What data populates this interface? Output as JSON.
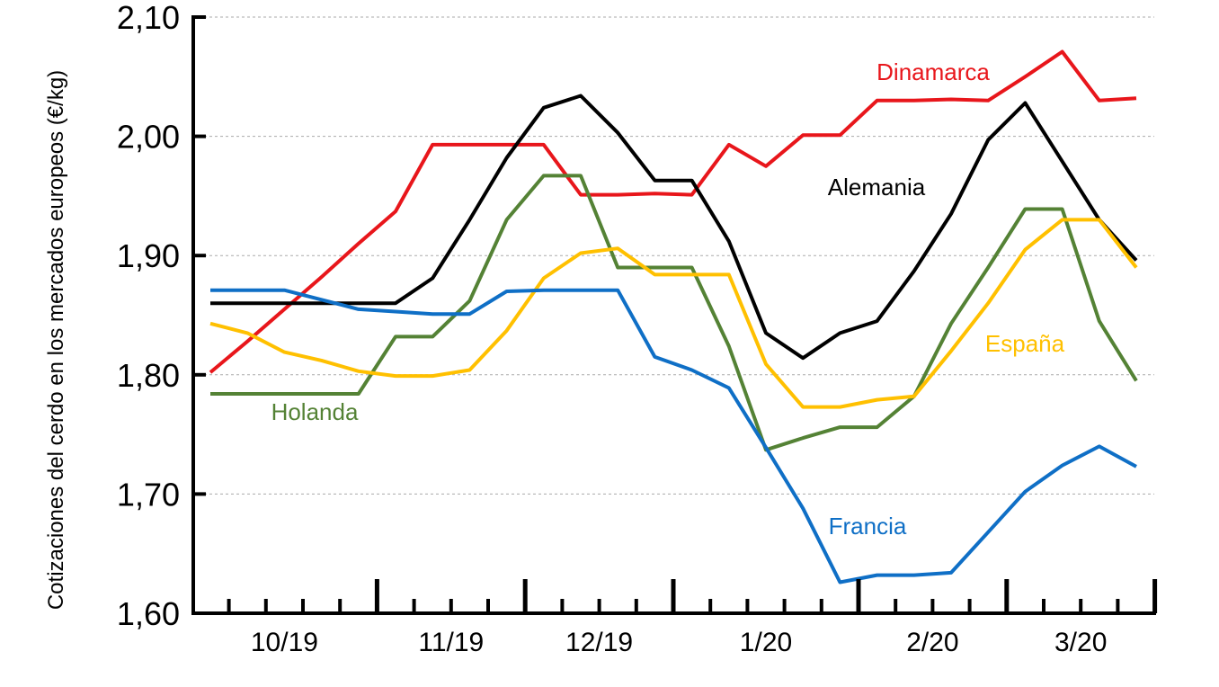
{
  "chart_data": {
    "type": "line",
    "title": "",
    "xlabel": "",
    "ylabel": "Cotizaciones del cerdo en los mercados europeos (€/kg)",
    "ylim": [
      1.6,
      2.1
    ],
    "yticks": [
      "1,60",
      "1,70",
      "1,80",
      "1,90",
      "2,00",
      "2,10"
    ],
    "grid": "horizontal dashed",
    "legend": "inline labels",
    "x_month_labels": [
      "10/19",
      "11/19",
      "12/19",
      "1/20",
      "2/20",
      "3/20"
    ],
    "series": [
      {
        "name": "Dinamarca",
        "color": "#e8161b",
        "values": [
          1.802,
          1.828,
          1.855,
          1.882,
          1.91,
          1.937,
          1.993,
          1.993,
          1.993,
          1.993,
          1.951,
          1.951,
          1.952,
          1.951,
          1.993,
          1.975,
          2.001,
          2.001,
          2.03,
          2.03,
          2.031,
          2.03,
          2.05,
          2.071,
          2.03,
          2.032
        ]
      },
      {
        "name": "Alemania",
        "color": "#000000",
        "values": [
          1.86,
          1.86,
          1.86,
          1.86,
          1.86,
          1.86,
          1.881,
          1.93,
          1.982,
          2.024,
          2.034,
          2.003,
          1.963,
          1.963,
          1.912,
          1.835,
          1.814,
          1.835,
          1.845,
          1.887,
          1.935,
          1.997,
          2.028,
          1.979,
          1.93,
          1.896
        ]
      },
      {
        "name": "Holanda",
        "color": "#548235",
        "values": [
          1.784,
          1.784,
          1.784,
          1.784,
          1.784,
          1.832,
          1.832,
          1.862,
          1.93,
          1.967,
          1.967,
          1.89,
          1.89,
          1.89,
          1.824,
          1.737,
          1.747,
          1.756,
          1.756,
          1.782,
          1.843,
          1.89,
          1.939,
          1.939,
          1.845,
          1.795
        ]
      },
      {
        "name": "España",
        "color": "#ffc000",
        "values": [
          1.843,
          1.835,
          1.819,
          1.812,
          1.803,
          1.799,
          1.799,
          1.804,
          1.837,
          1.881,
          1.902,
          1.906,
          1.884,
          1.884,
          1.884,
          1.809,
          1.773,
          1.773,
          1.779,
          1.782,
          1.82,
          1.86,
          1.905,
          1.93,
          1.93,
          1.89
        ]
      },
      {
        "name": "Francia",
        "color": "#0f6fc6",
        "values": [
          1.871,
          1.871,
          1.871,
          1.863,
          1.855,
          1.853,
          1.851,
          1.851,
          1.87,
          1.871,
          1.871,
          1.871,
          1.815,
          1.804,
          1.789,
          1.739,
          1.688,
          1.626,
          1.632,
          1.632,
          1.634,
          1.668,
          1.702,
          1.724,
          1.74,
          1.723
        ]
      }
    ]
  }
}
